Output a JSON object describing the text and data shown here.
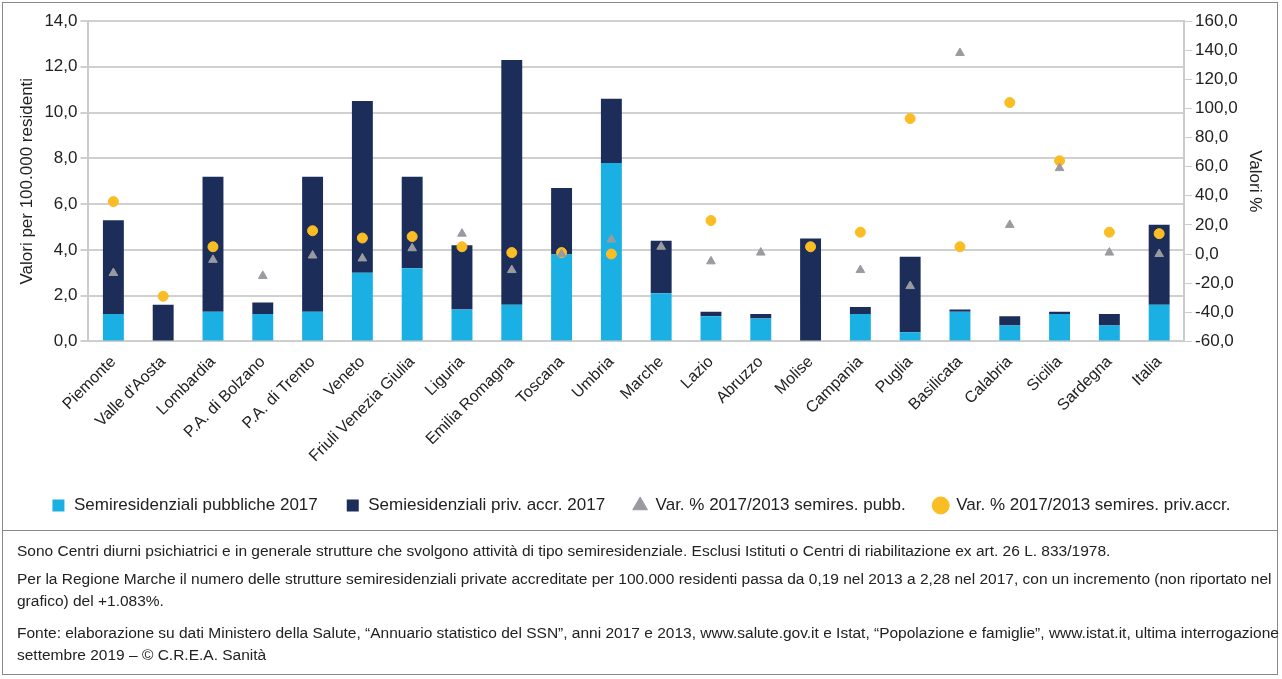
{
  "chart_data": {
    "type": "bar",
    "stacked": true,
    "categories": [
      "Piemonte",
      "Valle d'Aosta",
      "Lombardia",
      "P.A. di Bolzano",
      "P.A. di Trento",
      "Veneto",
      "Friuli Venezia Giulia",
      "Liguria",
      "Emilia Romagna",
      "Toscana",
      "Umbria",
      "Marche",
      "Lazio",
      "Abruzzo",
      "Molise",
      "Campania",
      "Puglia",
      "Basilicata",
      "Calabria",
      "Sicilia",
      "Sardegna",
      "Italia"
    ],
    "series": [
      {
        "name": "Semiresidenziali pubbliche 2017",
        "color": "#1bb0e4",
        "values": [
          1.2,
          0,
          1.3,
          1.2,
          1.3,
          3.0,
          3.2,
          1.4,
          1.6,
          3.8,
          7.8,
          2.1,
          1.1,
          1.0,
          0,
          1.2,
          0.4,
          1.3,
          0.7,
          1.2,
          0.7,
          1.6
        ]
      },
      {
        "name": "Semiesidenziali priv. accr. 2017",
        "color": "#1c2d5a",
        "values": [
          4.1,
          1.6,
          5.9,
          0.5,
          5.9,
          7.5,
          4.0,
          2.8,
          10.7,
          2.9,
          2.8,
          2.3,
          0.2,
          0.2,
          4.5,
          0.3,
          3.3,
          0.1,
          0.4,
          0.1,
          0.5,
          3.5
        ]
      },
      {
        "name": "Var. % 2017/2013 semires. pubb.",
        "type": "scatter",
        "axis": "y2",
        "marker": "triangle",
        "color": "#999ba0",
        "values": [
          -13,
          null,
          -4,
          -15,
          -1,
          -3,
          4,
          14,
          -11,
          0,
          10,
          5,
          -5,
          1,
          null,
          -11,
          -22,
          138,
          20,
          59,
          1,
          0
        ]
      },
      {
        "name": "Var. % 2017/2013 semires. priv.accr.",
        "type": "scatter",
        "axis": "y2",
        "marker": "circle",
        "color": "#fbbd24",
        "values": [
          36,
          -29,
          5,
          null,
          16,
          11,
          12,
          5,
          1,
          1,
          0,
          null,
          23,
          null,
          5,
          15,
          93,
          5,
          104,
          64,
          15,
          14
        ]
      }
    ],
    "ylabel": "Valori per 100.000 residenti",
    "y2label": "Valori %",
    "ylim": [
      0,
      14
    ],
    "yticks": [
      {
        "value": 0,
        "label": "0,0"
      },
      {
        "value": 2,
        "label": "2,0"
      },
      {
        "value": 4,
        "label": "4,0"
      },
      {
        "value": 6,
        "label": "6,0"
      },
      {
        "value": 8,
        "label": "8,0"
      },
      {
        "value": 10,
        "label": "10,0"
      },
      {
        "value": 12,
        "label": "12,0"
      },
      {
        "value": 14,
        "label": "14,0"
      }
    ],
    "y2lim": [
      -60,
      160
    ],
    "y2ticks": [
      {
        "value": -60,
        "label": "-60,0"
      },
      {
        "value": -40,
        "label": "-40,0"
      },
      {
        "value": -20,
        "label": "-20,0"
      },
      {
        "value": 0,
        "label": "0,0"
      },
      {
        "value": 20,
        "label": "20,0"
      },
      {
        "value": 40,
        "label": "40,0"
      },
      {
        "value": 60,
        "label": "60,0"
      },
      {
        "value": 80,
        "label": "80,0"
      },
      {
        "value": 100,
        "label": "100,0"
      },
      {
        "value": 120,
        "label": "120,0"
      },
      {
        "value": 140,
        "label": "140,0"
      },
      {
        "value": 160,
        "label": "160,0"
      }
    ],
    "grid": "y",
    "legend": "bottom",
    "annotations": [
      "Sono Centri diurni psichiatrici e in generale strutture che svolgono attività di tipo semiresidenziale. Esclusi Istituti o Centri di riabilitazione ex art. 26 L. 833/1978.",
      "Per la Regione Marche il numero delle strutture semiresidenziali private accreditate per 100.000 residenti passa da 0,19 nel 2013 a 2,28 nel 2017, con un incremento (non riportato nel grafico) del +1.083%.",
      "Fonte: elaborazione su dati Ministero della Salute, “Annuario statistico del SSN”, anni 2017 e 2013, www.salute.gov.it e Istat, “Popolazione e famiglie”, www.istat.it, ultima interrogazione settembre 2019 – © C.R.E.A. Sanità"
    ]
  }
}
